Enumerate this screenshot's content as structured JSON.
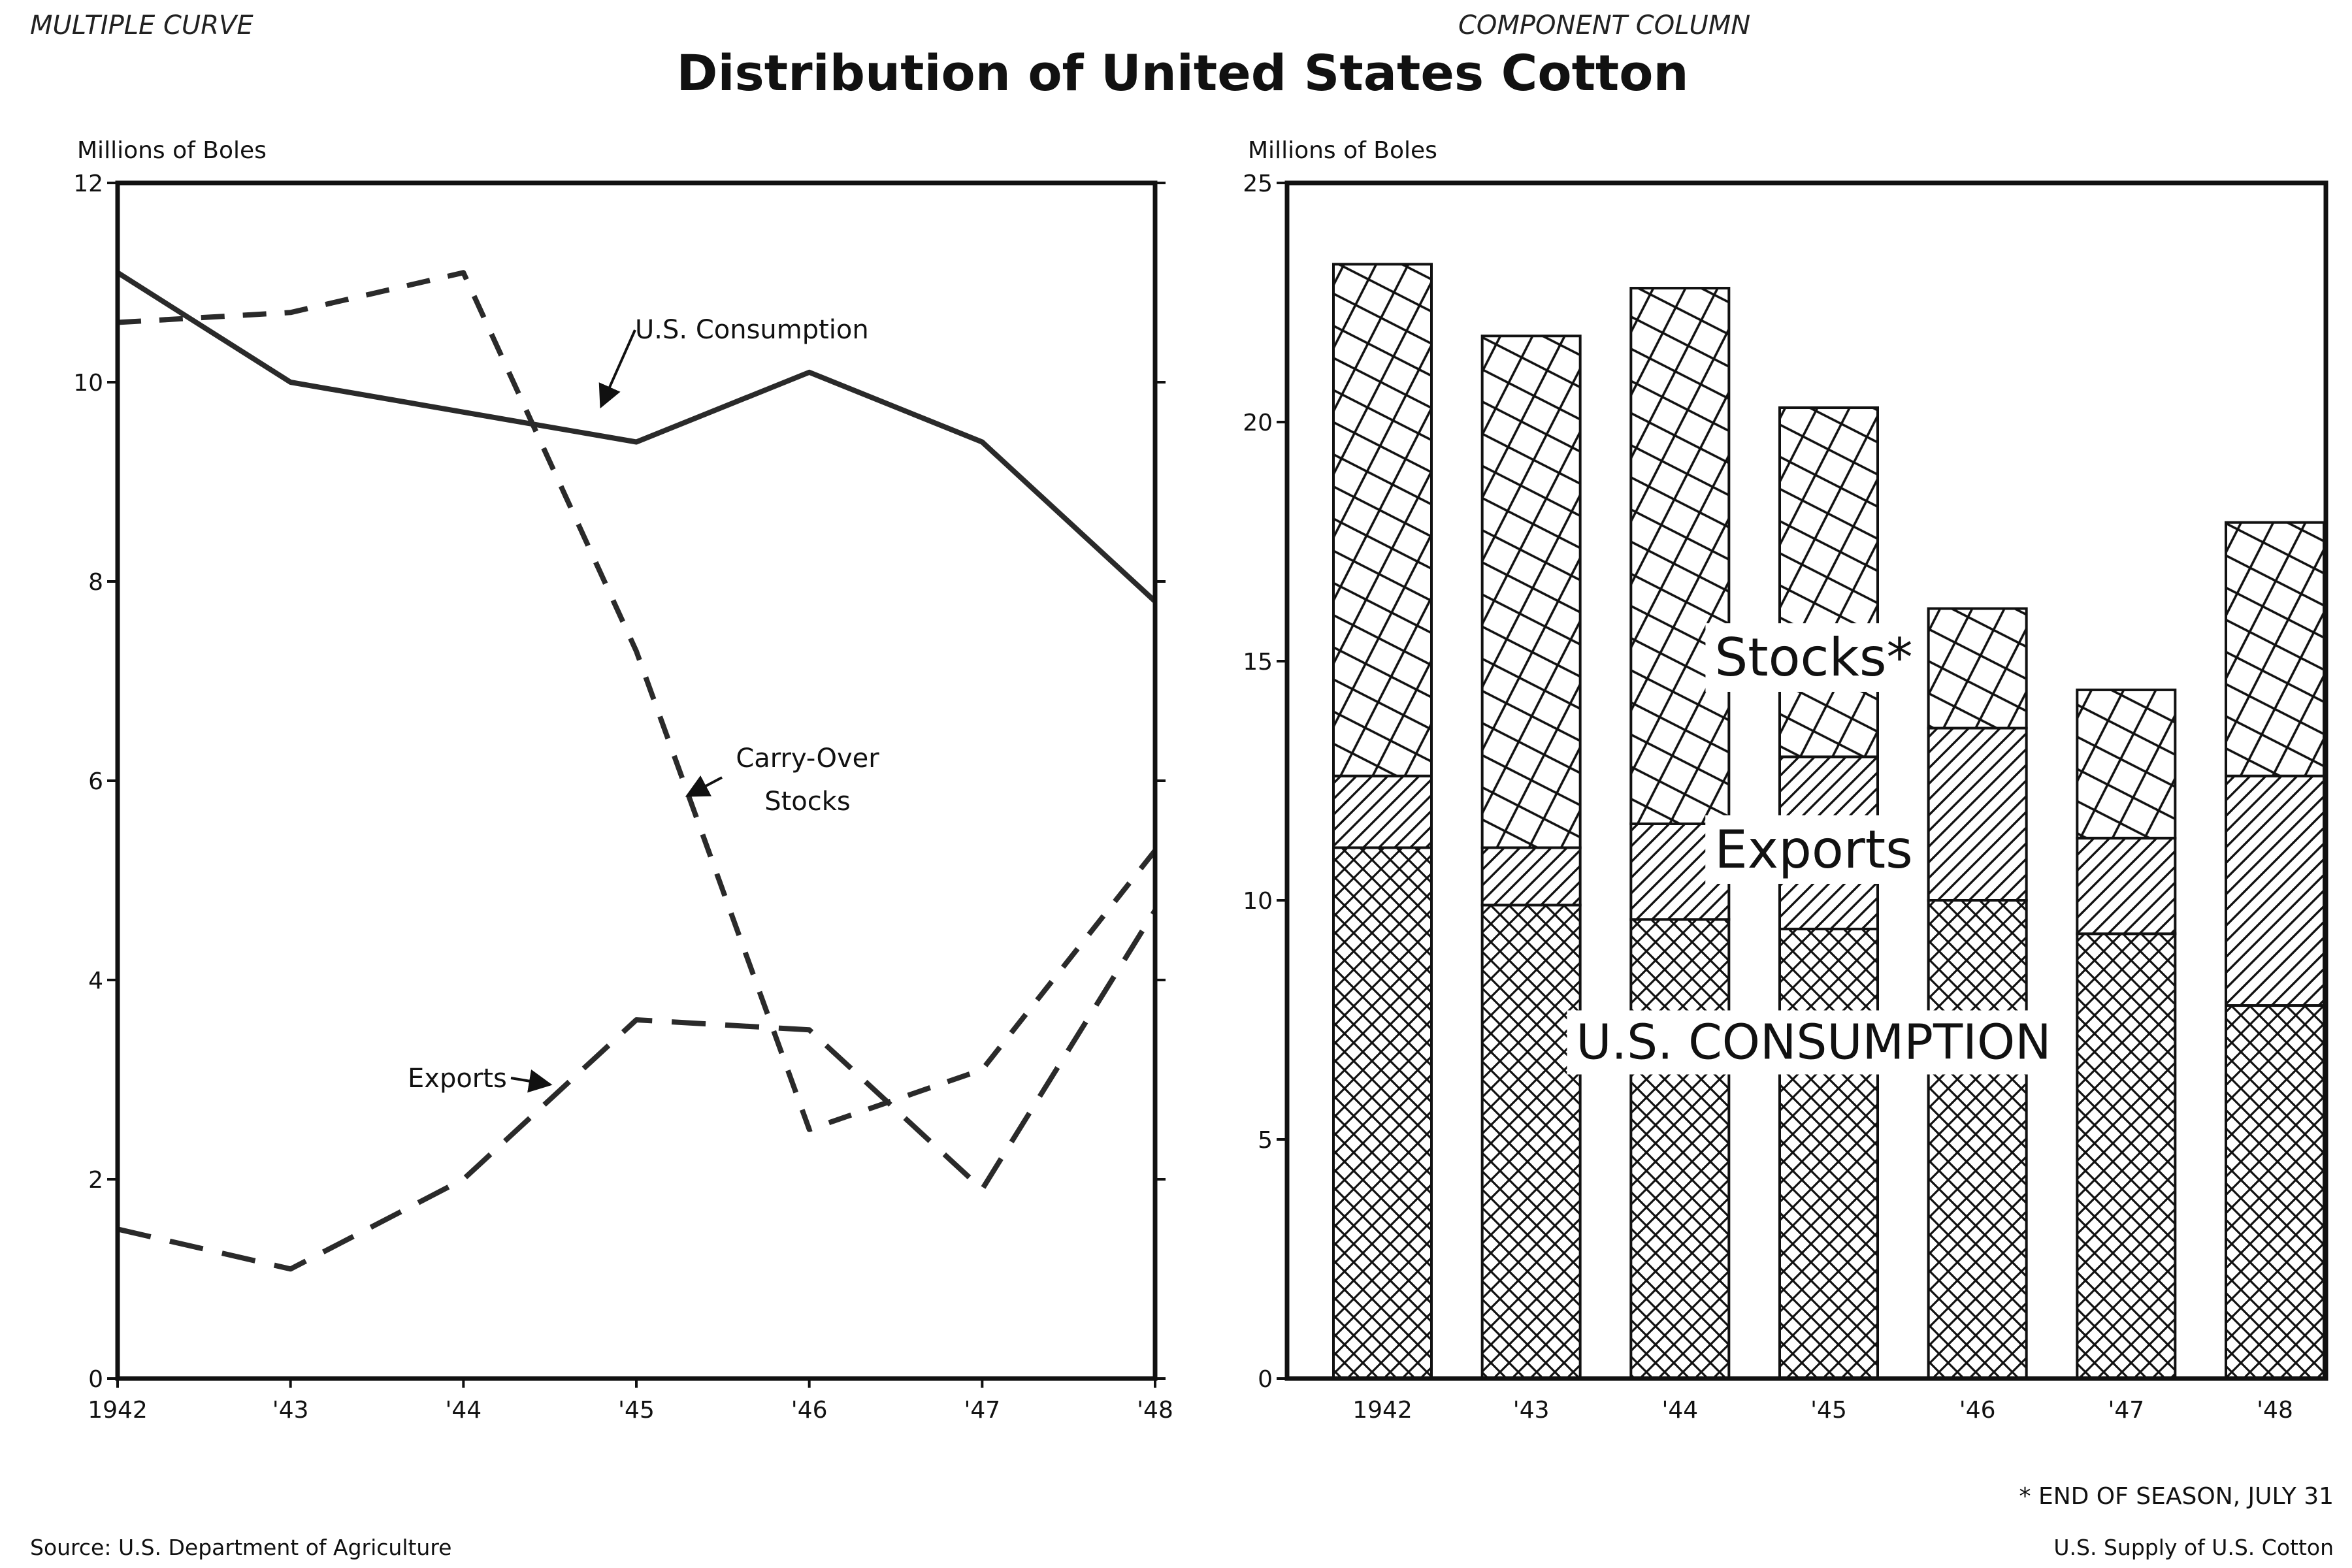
{
  "page": {
    "top_left_note": "MULTIPLE CURVE",
    "top_right_note": "COMPONENT COLUMN",
    "title": "Distribution of United States Cotton",
    "source": "Source: U.S. Department of Agriculture",
    "footnote": "* END OF SEASON, JULY 31",
    "bottom_right": "U.S. Supply of U.S. Cotton"
  },
  "chart_data": [
    {
      "type": "line",
      "ylabel": "Millions of Boles",
      "xlabel": "",
      "x": [
        "1942",
        "'43",
        "'44",
        "'45",
        "'46",
        "'47",
        "'48"
      ],
      "ylim": [
        0,
        12
      ],
      "yticks": [
        0,
        2,
        4,
        6,
        8,
        10,
        12
      ],
      "ytick_labels": [
        "0",
        "2",
        "4",
        "6",
        "8",
        "10",
        "12"
      ],
      "grid": false,
      "series": [
        {
          "name": "U.S. Consumption",
          "values": [
            11.1,
            10.0,
            9.7,
            9.4,
            10.1,
            9.4,
            7.8
          ],
          "style": "solid"
        },
        {
          "name": "Carry-Over Stocks",
          "values": [
            10.6,
            10.7,
            11.1,
            7.3,
            2.5,
            3.1,
            5.3
          ],
          "style": "dashed"
        },
        {
          "name": "Exports",
          "values": [
            1.5,
            1.1,
            2.0,
            3.6,
            3.5,
            1.9,
            4.7
          ],
          "style": "longdash"
        }
      ],
      "annotations": {
        "consumption": "U.S. Consumption",
        "stocks_line1": "Carry-Over",
        "stocks_line2": "Stocks",
        "exports": "Exports"
      }
    },
    {
      "type": "bar",
      "stacked": true,
      "ylabel": "Millions of Boles",
      "xlabel": "",
      "categories": [
        "1942",
        "'43",
        "'44",
        "'45",
        "'46",
        "'47",
        "'48"
      ],
      "ylim": [
        0,
        25
      ],
      "yticks": [
        0,
        5,
        10,
        15,
        20,
        25
      ],
      "ytick_labels": [
        "0",
        "5",
        "10",
        "15",
        "20",
        "25"
      ],
      "grid": false,
      "series": [
        {
          "name": "U.S. CONSUMPTION",
          "values": [
            11.1,
            9.9,
            9.6,
            9.4,
            10.0,
            9.3,
            7.8
          ],
          "pattern": "fine-crosshatch"
        },
        {
          "name": "Exports",
          "values": [
            1.5,
            1.2,
            2.0,
            3.6,
            3.6,
            2.0,
            4.8
          ],
          "pattern": "diagonal"
        },
        {
          "name": "Stocks*",
          "values": [
            10.7,
            10.7,
            11.2,
            7.3,
            2.5,
            3.1,
            5.3
          ],
          "pattern": "coarse-crosshatch"
        }
      ]
    }
  ]
}
